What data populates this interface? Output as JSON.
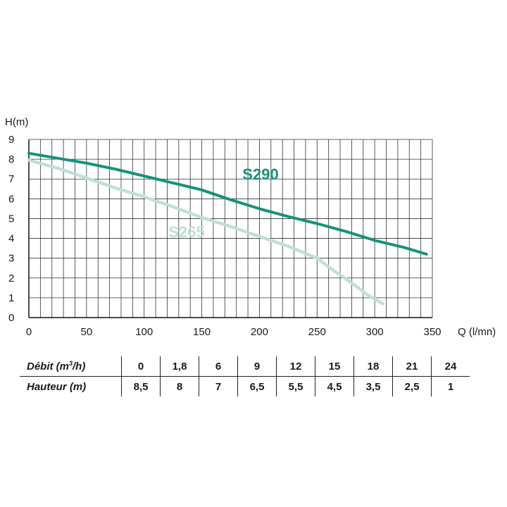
{
  "chart_data": {
    "type": "line",
    "ylabel": "H(m)",
    "xlabel": "Q (l/mn)",
    "xlim": [
      0,
      350
    ],
    "ylim": [
      0,
      9
    ],
    "xticks": [
      0,
      50,
      100,
      150,
      200,
      250,
      300,
      350
    ],
    "yticks": [
      0,
      1,
      2,
      3,
      4,
      5,
      6,
      7,
      8,
      9
    ],
    "grid": true,
    "series": [
      {
        "name": "S290",
        "color": "#14937a",
        "x": [
          0,
          25,
          50,
          75,
          100,
          125,
          150,
          175,
          200,
          225,
          250,
          275,
          300,
          325,
          345
        ],
        "y": [
          8.3,
          8.05,
          7.8,
          7.5,
          7.15,
          6.8,
          6.45,
          5.95,
          5.5,
          5.1,
          4.75,
          4.35,
          3.9,
          3.55,
          3.2
        ]
      },
      {
        "name": "S265",
        "color": "#bfe0d8",
        "x": [
          0,
          25,
          50,
          75,
          100,
          125,
          150,
          175,
          200,
          225,
          250,
          265,
          280,
          295,
          307
        ],
        "y": [
          7.95,
          7.55,
          7.05,
          6.55,
          6.1,
          5.6,
          5.05,
          4.6,
          4.1,
          3.6,
          3.0,
          2.35,
          1.75,
          1.1,
          0.7
        ]
      }
    ]
  },
  "table": {
    "debit_label": "Débit (m",
    "debit_sup": "3",
    "debit_suffix": "/h)",
    "hauteur_label": "Hauteur (m)",
    "debit_values": [
      "0",
      "1,8",
      "6",
      "9",
      "12",
      "15",
      "18",
      "21",
      "24"
    ],
    "hauteur_values": [
      "8,5",
      "8",
      "7",
      "6,5",
      "5,5",
      "4,5",
      "3,5",
      "2,5",
      "1"
    ]
  }
}
